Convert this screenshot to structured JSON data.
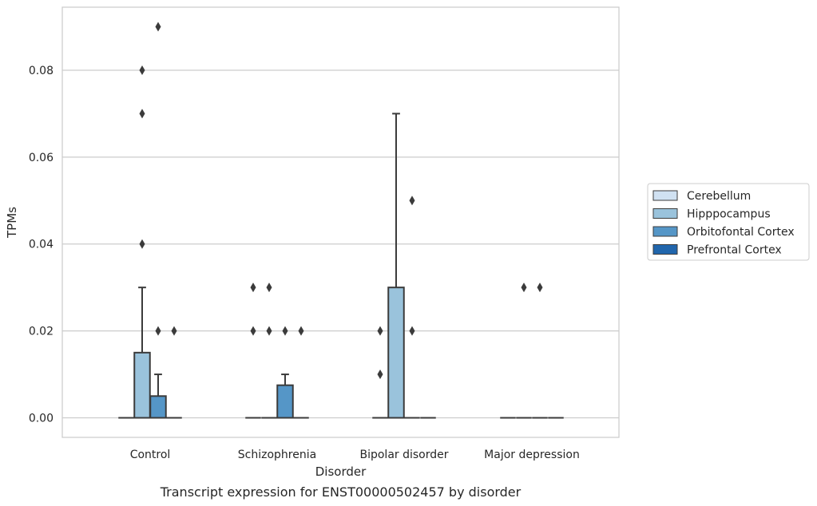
{
  "chart_data": {
    "type": "box",
    "caption": "Transcript expression for ENST00000502457 by disorder",
    "xlabel": "Disorder",
    "ylabel": "TPMs",
    "ylim": [
      -0.0045,
      0.0945
    ],
    "yticks": [
      0.0,
      0.02,
      0.04,
      0.06,
      0.08
    ],
    "ytick_labels": [
      "0.00",
      "0.02",
      "0.04",
      "0.06",
      "0.08"
    ],
    "grid": "horizontal",
    "legend_position": "right",
    "categories": [
      "Control",
      "Schizophrenia",
      "Bipolar disorder",
      "Major depression"
    ],
    "series": [
      {
        "name": "Cerebellum",
        "color": "#d0e1f2",
        "boxes": [
          {
            "q1": 0,
            "median": 0,
            "q3": 0,
            "whisker_low": 0,
            "whisker_high": 0,
            "outliers": []
          },
          {
            "q1": 0,
            "median": 0,
            "q3": 0,
            "whisker_low": 0,
            "whisker_high": 0,
            "outliers": [
              0.02,
              0.03
            ]
          },
          {
            "q1": 0,
            "median": 0,
            "q3": 0,
            "whisker_low": 0,
            "whisker_high": 0,
            "outliers": [
              0.01,
              0.02
            ]
          },
          {
            "q1": 0,
            "median": 0,
            "q3": 0,
            "whisker_low": 0,
            "whisker_high": 0,
            "outliers": []
          }
        ]
      },
      {
        "name": "Hipppocampus",
        "color": "#9ac3dc",
        "boxes": [
          {
            "q1": 0,
            "median": 0,
            "q3": 0.015,
            "whisker_low": 0,
            "whisker_high": 0.03,
            "outliers": [
              0.04,
              0.07,
              0.08
            ]
          },
          {
            "q1": 0,
            "median": 0,
            "q3": 0,
            "whisker_low": 0,
            "whisker_high": 0,
            "outliers": [
              0.02,
              0.03
            ]
          },
          {
            "q1": 0,
            "median": 0,
            "q3": 0.03,
            "whisker_low": 0,
            "whisker_high": 0.07,
            "outliers": []
          },
          {
            "q1": 0,
            "median": 0,
            "q3": 0,
            "whisker_low": 0,
            "whisker_high": 0,
            "outliers": [
              0.03
            ]
          }
        ]
      },
      {
        "name": "Orbitofontal Cortex",
        "color": "#5596c7",
        "boxes": [
          {
            "q1": 0,
            "median": 0,
            "q3": 0.005,
            "whisker_low": 0,
            "whisker_high": 0.01,
            "outliers": [
              0.02,
              0.09
            ]
          },
          {
            "q1": 0,
            "median": 0,
            "q3": 0.0075,
            "whisker_low": 0,
            "whisker_high": 0.01,
            "outliers": [
              0.02
            ]
          },
          {
            "q1": 0,
            "median": 0,
            "q3": 0,
            "whisker_low": 0,
            "whisker_high": 0,
            "outliers": [
              0.02,
              0.05
            ]
          },
          {
            "q1": 0,
            "median": 0,
            "q3": 0,
            "whisker_low": 0,
            "whisker_high": 0,
            "outliers": [
              0.03
            ]
          }
        ]
      },
      {
        "name": "Prefrontal Cortex",
        "color": "#2166ac",
        "boxes": [
          {
            "q1": 0,
            "median": 0,
            "q3": 0,
            "whisker_low": 0,
            "whisker_high": 0,
            "outliers": [
              0.02
            ]
          },
          {
            "q1": 0,
            "median": 0,
            "q3": 0,
            "whisker_low": 0,
            "whisker_high": 0,
            "outliers": [
              0.02
            ]
          },
          {
            "q1": 0,
            "median": 0,
            "q3": 0,
            "whisker_low": 0,
            "whisker_high": 0,
            "outliers": []
          },
          {
            "q1": 0,
            "median": 0,
            "q3": 0,
            "whisker_low": 0,
            "whisker_high": 0,
            "outliers": []
          }
        ]
      }
    ]
  }
}
